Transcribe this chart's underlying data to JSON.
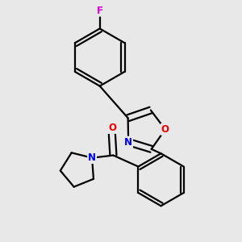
{
  "background_color": "#e8e8e8",
  "bond_color": "#000000",
  "atom_colors": {
    "F": "#dd00dd",
    "N": "#0000ee",
    "O": "#ee0000",
    "C": "#000000"
  },
  "bond_width": 1.6,
  "title": ""
}
